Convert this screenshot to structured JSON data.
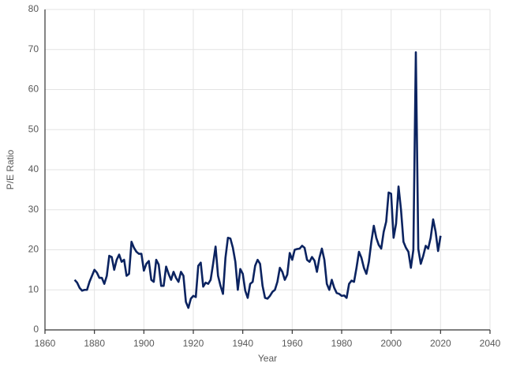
{
  "chart_data": {
    "type": "line",
    "x_label": "Year",
    "y_label": "P/E Ratio",
    "x": [
      1872,
      1873,
      1874,
      1875,
      1876,
      1877,
      1878,
      1879,
      1880,
      1881,
      1882,
      1883,
      1884,
      1885,
      1886,
      1887,
      1888,
      1889,
      1890,
      1891,
      1892,
      1893,
      1894,
      1895,
      1896,
      1897,
      1898,
      1899,
      1900,
      1901,
      1902,
      1903,
      1904,
      1905,
      1906,
      1907,
      1908,
      1909,
      1910,
      1911,
      1912,
      1913,
      1914,
      1915,
      1916,
      1917,
      1918,
      1919,
      1920,
      1921,
      1922,
      1923,
      1924,
      1925,
      1926,
      1927,
      1928,
      1929,
      1930,
      1931,
      1932,
      1933,
      1934,
      1935,
      1936,
      1937,
      1938,
      1939,
      1940,
      1941,
      1942,
      1943,
      1944,
      1945,
      1946,
      1947,
      1948,
      1949,
      1950,
      1951,
      1952,
      1953,
      1954,
      1955,
      1956,
      1957,
      1958,
      1959,
      1960,
      1961,
      1962,
      1963,
      1964,
      1965,
      1966,
      1967,
      1968,
      1969,
      1970,
      1971,
      1972,
      1973,
      1974,
      1975,
      1976,
      1977,
      1978,
      1979,
      1980,
      1981,
      1982,
      1983,
      1984,
      1985,
      1986,
      1987,
      1988,
      1989,
      1990,
      1991,
      1992,
      1993,
      1994,
      1995,
      1996,
      1997,
      1998,
      1999,
      2000,
      2001,
      2002,
      2003,
      2004,
      2005,
      2006,
      2007,
      2008,
      2009,
      2010,
      2011,
      2012,
      2013,
      2014,
      2015,
      2016,
      2017,
      2018,
      2019,
      2020
    ],
    "series": [
      {
        "name": "P/E Ratio",
        "color": "#0b2360",
        "values": [
          12.5,
          11.8,
          10.5,
          9.8,
          10.0,
          10.0,
          12,
          13.5,
          15,
          14.3,
          13,
          13,
          11.5,
          13.5,
          18.5,
          18.2,
          15,
          17.5,
          18.8,
          17,
          17.5,
          13.5,
          14,
          22,
          20.5,
          19.5,
          19,
          19,
          14.8,
          16.5,
          17.2,
          12.5,
          12,
          17.5,
          16.3,
          11,
          11,
          15.8,
          14,
          12.5,
          14.5,
          13,
          12,
          14.5,
          13.5,
          7,
          5.5,
          7.8,
          8.5,
          8.2,
          16,
          16.8,
          10.8,
          11.8,
          11.5,
          12.5,
          16.5,
          20.8,
          13.5,
          11,
          9,
          18,
          23,
          22.8,
          20.5,
          17,
          10,
          15.2,
          14,
          9.8,
          8,
          11.5,
          12,
          16,
          17.5,
          16.5,
          11,
          8,
          7.8,
          8.5,
          9.5,
          10,
          12,
          15.5,
          14.5,
          12.5,
          13.8,
          19.2,
          17.5,
          20,
          20.2,
          20.3,
          21,
          20.5,
          17.5,
          17,
          18.2,
          17.3,
          14.5,
          18,
          20.3,
          17.5,
          11.5,
          10,
          12.5,
          10.5,
          9.2,
          9,
          8.5,
          8.6,
          8,
          11.5,
          12.3,
          12,
          15.5,
          19.5,
          18,
          15.5,
          14,
          17,
          22,
          26,
          23,
          21.2,
          20.3,
          24.5,
          27,
          34.3,
          34,
          23,
          26.5,
          35.8,
          30,
          22,
          20.5,
          19.5,
          15.5,
          20,
          69.3,
          20.2,
          16.5,
          18.5,
          21,
          20.3,
          23,
          27.6,
          24.5,
          19.7,
          23.5
        ]
      }
    ],
    "xlim": [
      1860,
      2040
    ],
    "xticks": [
      1860,
      1880,
      1900,
      1920,
      1940,
      1960,
      1980,
      2000,
      2020,
      2040
    ],
    "ylim": [
      0,
      80
    ],
    "yticks": [
      0,
      10,
      20,
      30,
      40,
      50,
      60,
      70,
      80
    ],
    "grid": true
  }
}
